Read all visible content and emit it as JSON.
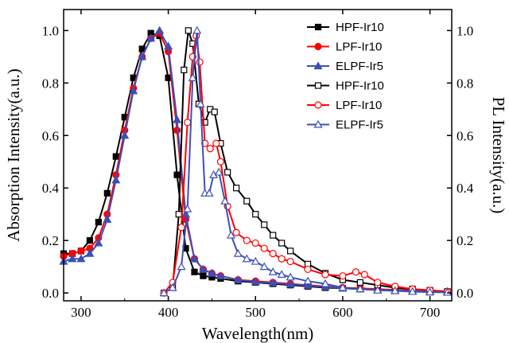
{
  "chart_data": {
    "type": "line",
    "xlabel": "Wavelength(nm)",
    "ylabel_left": "Absorption Intensity(a.u.)",
    "ylabel_right": "PL Intensity(a.u.)",
    "xlim": [
      280,
      725
    ],
    "ylim": [
      -0.03,
      1.08
    ],
    "x_ticks": [
      300,
      400,
      500,
      600,
      700
    ],
    "y_ticks": [
      0.0,
      0.2,
      0.4,
      0.6,
      0.8,
      1.0
    ],
    "grid": false,
    "legend_position": "top-right",
    "series": [
      {
        "name": "HPF-Ir10",
        "group": "absorption",
        "color": "#000000",
        "marker": "square",
        "fill": "filled",
        "x": [
          280,
          290,
          300,
          310,
          320,
          330,
          340,
          350,
          360,
          370,
          380,
          390,
          400,
          410,
          420,
          430,
          440,
          450,
          460,
          480,
          500,
          520,
          540,
          560,
          580,
          600,
          620,
          640,
          660,
          680,
          700,
          720
        ],
        "y": [
          0.15,
          0.15,
          0.16,
          0.2,
          0.27,
          0.38,
          0.52,
          0.67,
          0.82,
          0.93,
          0.99,
          0.98,
          0.82,
          0.45,
          0.17,
          0.08,
          0.065,
          0.06,
          0.055,
          0.045,
          0.04,
          0.035,
          0.03,
          0.025,
          0.02,
          0.018,
          0.015,
          0.012,
          0.01,
          0.008,
          0.006,
          0.005
        ]
      },
      {
        "name": "LPF-Ir10",
        "group": "absorption",
        "color": "#ff0000",
        "marker": "circle",
        "fill": "filled",
        "x": [
          280,
          290,
          300,
          310,
          320,
          330,
          340,
          350,
          360,
          370,
          380,
          390,
          400,
          410,
          420,
          430,
          440,
          450,
          460,
          480,
          500,
          520,
          540,
          560,
          580,
          600,
          620,
          640,
          660,
          680,
          700,
          720
        ],
        "y": [
          0.14,
          0.15,
          0.16,
          0.17,
          0.21,
          0.3,
          0.45,
          0.62,
          0.78,
          0.9,
          0.97,
          0.99,
          0.92,
          0.62,
          0.28,
          0.13,
          0.09,
          0.075,
          0.065,
          0.05,
          0.045,
          0.04,
          0.035,
          0.03,
          0.025,
          0.02,
          0.018,
          0.015,
          0.012,
          0.01,
          0.008,
          0.006
        ]
      },
      {
        "name": "ELPF-Ir5",
        "group": "absorption",
        "color": "#3b4fb8",
        "marker": "triangle",
        "fill": "filled",
        "x": [
          280,
          290,
          300,
          310,
          320,
          330,
          340,
          350,
          360,
          370,
          380,
          390,
          400,
          410,
          420,
          430,
          440,
          450,
          460,
          480,
          500,
          520,
          540,
          560,
          580,
          600,
          620,
          640,
          660,
          680,
          700,
          720
        ],
        "y": [
          0.12,
          0.13,
          0.13,
          0.15,
          0.19,
          0.28,
          0.43,
          0.6,
          0.77,
          0.9,
          0.97,
          1.0,
          0.94,
          0.66,
          0.3,
          0.13,
          0.09,
          0.075,
          0.065,
          0.05,
          0.042,
          0.038,
          0.033,
          0.028,
          0.023,
          0.018,
          0.015,
          0.012,
          0.01,
          0.008,
          0.006,
          0.005
        ]
      },
      {
        "name": "HPF-Ir10",
        "group": "pl",
        "color": "#000000",
        "marker": "square",
        "fill": "open",
        "x": [
          395,
          405,
          412,
          418,
          423,
          428,
          435,
          442,
          448,
          453,
          460,
          468,
          478,
          490,
          500,
          510,
          520,
          530,
          540,
          560,
          580,
          600,
          620,
          640,
          660,
          680,
          700,
          720
        ],
        "y": [
          0.0,
          0.02,
          0.3,
          0.85,
          1.0,
          0.95,
          0.72,
          0.65,
          0.7,
          0.69,
          0.57,
          0.46,
          0.4,
          0.35,
          0.3,
          0.26,
          0.22,
          0.19,
          0.16,
          0.11,
          0.075,
          0.05,
          0.04,
          0.03,
          0.02,
          0.015,
          0.01,
          0.005
        ]
      },
      {
        "name": "LPF-Ir10",
        "group": "pl",
        "color": "#ff0000",
        "marker": "circle",
        "fill": "open",
        "x": [
          395,
          405,
          415,
          422,
          428,
          432,
          436,
          442,
          448,
          455,
          460,
          468,
          478,
          490,
          500,
          510,
          520,
          530,
          540,
          560,
          580,
          600,
          615,
          625,
          640,
          660,
          680,
          700,
          720
        ],
        "y": [
          0.0,
          0.04,
          0.25,
          0.65,
          0.9,
          0.98,
          0.88,
          0.57,
          0.55,
          0.57,
          0.5,
          0.33,
          0.23,
          0.2,
          0.19,
          0.17,
          0.15,
          0.13,
          0.12,
          0.09,
          0.07,
          0.065,
          0.08,
          0.07,
          0.04,
          0.025,
          0.015,
          0.01,
          0.005
        ]
      },
      {
        "name": "ELPF-Ir5",
        "group": "pl",
        "color": "#3b4fb8",
        "marker": "triangle",
        "fill": "open",
        "x": [
          395,
          405,
          415,
          422,
          428,
          433,
          437,
          442,
          447,
          452,
          458,
          465,
          472,
          480,
          490,
          500,
          510,
          520,
          530,
          540,
          560,
          580,
          600,
          620,
          640,
          660,
          680,
          700,
          720
        ],
        "y": [
          0.0,
          0.02,
          0.1,
          0.32,
          0.82,
          1.0,
          0.72,
          0.38,
          0.38,
          0.45,
          0.46,
          0.35,
          0.22,
          0.15,
          0.13,
          0.12,
          0.1,
          0.08,
          0.07,
          0.06,
          0.045,
          0.035,
          0.02,
          0.015,
          0.01,
          0.008,
          0.005,
          0.003,
          0.002
        ]
      }
    ]
  }
}
